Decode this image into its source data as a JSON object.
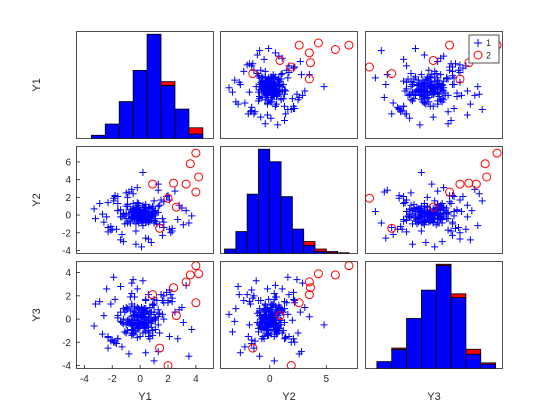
{
  "chart_data": {
    "type": "scatter",
    "variables": [
      "Y1",
      "Y2",
      "Y3"
    ],
    "groups": [
      {
        "name": "1",
        "marker": "plus",
        "color": "#0000ff"
      },
      {
        "name": "2",
        "marker": "circle",
        "color": "#ff0000"
      }
    ],
    "legend": {
      "placement": "top-right",
      "entries": [
        "1",
        "2"
      ]
    },
    "grid": false,
    "axes": {
      "Y1": {
        "range": [
          -4.6,
          5.3
        ],
        "ticks": [
          -4,
          -2,
          0,
          2,
          4
        ]
      },
      "Y2": {
        "range": [
          -4.4,
          7.8
        ],
        "ticks": [
          -4,
          -2,
          0,
          2,
          4,
          6
        ],
        "xticks": [
          -5,
          0,
          5
        ]
      },
      "Y3": {
        "range": [
          -4.3,
          5.0
        ],
        "ticks": [
          -4,
          -2,
          0,
          2,
          4
        ]
      }
    },
    "histograms": {
      "Y1": {
        "edges": [
          -3.5,
          -2.5,
          -1.5,
          -0.5,
          0.5,
          1.5,
          2.5,
          3.5,
          4.5
        ],
        "group1": [
          3,
          12,
          30,
          55,
          84,
          43,
          24,
          4
        ],
        "group2": [
          0,
          0,
          0,
          0,
          0,
          3,
          0,
          5
        ]
      },
      "Y2": {
        "edges": [
          -4,
          -3,
          -2,
          -1,
          0,
          1,
          2,
          3,
          4,
          5,
          6,
          7
        ],
        "group1": [
          4,
          18,
          48,
          84,
          74,
          46,
          20,
          7,
          2,
          1,
          0
        ],
        "group2": [
          0,
          0,
          0,
          0,
          0,
          0,
          0,
          3,
          2,
          1,
          1
        ]
      },
      "Y3": {
        "edges": [
          -3.5,
          -2.5,
          -1.5,
          -0.5,
          0.5,
          1.5,
          2.5,
          3.5,
          4.5
        ],
        "group1": [
          6,
          16,
          41,
          64,
          84,
          58,
          12,
          4
        ],
        "group2": [
          0,
          1,
          0,
          0,
          1,
          3,
          4,
          1
        ]
      }
    },
    "group2_points": [
      {
        "Y1": 4.0,
        "Y2": 7.0,
        "Y3": 4.6
      },
      {
        "Y1": 3.6,
        "Y2": 5.8,
        "Y3": 3.8
      },
      {
        "Y1": 4.2,
        "Y2": 4.3,
        "Y3": 3.9
      },
      {
        "Y1": 3.3,
        "Y2": 3.5,
        "Y3": 3.2
      },
      {
        "Y1": 2.4,
        "Y2": 3.6,
        "Y3": 2.7
      },
      {
        "Y1": 4.0,
        "Y2": 2.6,
        "Y3": 1.4
      },
      {
        "Y1": 0.9,
        "Y2": 3.5,
        "Y3": 2.1
      },
      {
        "Y1": 1.4,
        "Y2": -1.5,
        "Y3": -2.5
      },
      {
        "Y1": 2.0,
        "Y2": 1.9,
        "Y3": -4.0
      },
      {
        "Y1": 2.6,
        "Y2": 0.9,
        "Y3": 0.3
      }
    ],
    "group1_points": [
      {
        "Y1": -0.7,
        "Y2": -0.9,
        "Y3": -0.4
      },
      {
        "Y1": -1.6,
        "Y2": 0.5,
        "Y3": 0.3
      },
      {
        "Y1": 1.4,
        "Y2": -1.1,
        "Y3": 0.5
      },
      {
        "Y1": 1.4,
        "Y2": 1.1,
        "Y3": -1.2
      },
      {
        "Y1": -0.2,
        "Y2": -0.5,
        "Y3": -0.8
      },
      {
        "Y1": 0.6,
        "Y2": -0.8,
        "Y3": -0.3
      },
      {
        "Y1": -0.3,
        "Y2": 0.3,
        "Y3": -0.1
      },
      {
        "Y1": -1.3,
        "Y2": -0.2,
        "Y3": -0.3
      },
      {
        "Y1": 1.0,
        "Y2": -0.1,
        "Y3": 1.7
      },
      {
        "Y1": -0.2,
        "Y2": 1.1,
        "Y3": 2.6
      },
      {
        "Y1": -0.5,
        "Y2": 0.7,
        "Y3": -1.0
      },
      {
        "Y1": 0.7,
        "Y2": -0.6,
        "Y3": 0.1
      },
      {
        "Y1": 0.8,
        "Y2": -0.1,
        "Y3": 0.6
      },
      {
        "Y1": -0.9,
        "Y2": 1.0,
        "Y3": -0.3
      },
      {
        "Y1": 0.7,
        "Y2": 0.9,
        "Y3": 1.0
      },
      {
        "Y1": -0.6,
        "Y2": -0.2,
        "Y3": -0.4
      },
      {
        "Y1": 0.0,
        "Y2": 0.1,
        "Y3": 0.8
      },
      {
        "Y1": -1.0,
        "Y2": 0.2,
        "Y3": 1.0
      },
      {
        "Y1": -0.1,
        "Y2": -0.9,
        "Y3": 0.3
      },
      {
        "Y1": 1.3,
        "Y2": 1.0,
        "Y3": 0.8
      },
      {
        "Y1": 0.9,
        "Y2": -0.1,
        "Y3": -1.4
      },
      {
        "Y1": -0.5,
        "Y2": 0.6,
        "Y3": -1.3
      },
      {
        "Y1": 0.4,
        "Y2": -0.4,
        "Y3": 0.2
      },
      {
        "Y1": -0.9,
        "Y2": 1.2,
        "Y3": -1.0
      },
      {
        "Y1": 0.9,
        "Y2": 1.0,
        "Y3": -0.1
      },
      {
        "Y1": 0.6,
        "Y2": 0.1,
        "Y3": -1.0
      },
      {
        "Y1": -1.6,
        "Y2": 0.5,
        "Y3": 0.1
      },
      {
        "Y1": 0.3,
        "Y2": 0.9,
        "Y3": -0.8
      },
      {
        "Y1": -1.2,
        "Y2": 0.1,
        "Y3": 0.0
      },
      {
        "Y1": 0.7,
        "Y2": -0.1,
        "Y3": -1.2
      },
      {
        "Y1": -1.1,
        "Y2": -1.0,
        "Y3": -1.1
      },
      {
        "Y1": 0.2,
        "Y2": 0.2,
        "Y3": 0.3
      },
      {
        "Y1": 0.4,
        "Y2": 0.4,
        "Y3": 1.7
      },
      {
        "Y1": -0.3,
        "Y2": 0.5,
        "Y3": 0.3
      },
      {
        "Y1": 0.7,
        "Y2": -0.7,
        "Y3": -1.7
      },
      {
        "Y1": 0.4,
        "Y2": -0.8,
        "Y3": 1.6
      },
      {
        "Y1": -0.5,
        "Y2": -0.2,
        "Y3": -1.3
      },
      {
        "Y1": 0.3,
        "Y2": 0.9,
        "Y3": 0.9
      },
      {
        "Y1": 1.1,
        "Y2": -0.7,
        "Y3": -0.9
      },
      {
        "Y1": -0.1,
        "Y2": 0.5,
        "Y3": -0.5
      },
      {
        "Y1": 0.2,
        "Y2": 1.1,
        "Y3": 0.6
      },
      {
        "Y1": 1.7,
        "Y2": -0.8,
        "Y3": 0.0
      },
      {
        "Y1": -0.4,
        "Y2": 0.2,
        "Y3": -0.1
      },
      {
        "Y1": -0.3,
        "Y2": -1.8,
        "Y3": -0.5
      },
      {
        "Y1": -0.6,
        "Y2": -0.3,
        "Y3": -1.0
      },
      {
        "Y1": 0.1,
        "Y2": -0.5,
        "Y3": 0.8
      },
      {
        "Y1": 1.1,
        "Y2": 0.1,
        "Y3": -0.1
      },
      {
        "Y1": -1.0,
        "Y2": 1.0,
        "Y3": -0.5
      },
      {
        "Y1": -0.1,
        "Y2": -0.7,
        "Y3": -0.8
      },
      {
        "Y1": 1.1,
        "Y2": 0.5,
        "Y3": 0.1
      },
      {
        "Y1": -0.6,
        "Y2": 0.3,
        "Y3": 1.3
      },
      {
        "Y1": 0.6,
        "Y2": -0.6,
        "Y3": -1.5
      },
      {
        "Y1": 0.8,
        "Y2": -0.2,
        "Y3": -0.4
      },
      {
        "Y1": -0.3,
        "Y2": 0.9,
        "Y3": -0.1
      },
      {
        "Y1": -0.5,
        "Y2": 0.7,
        "Y3": 0.7
      },
      {
        "Y1": 1.0,
        "Y2": 0.2,
        "Y3": 1.2
      },
      {
        "Y1": 0.2,
        "Y2": -0.3,
        "Y3": 0.8
      },
      {
        "Y1": 0.5,
        "Y2": -0.3,
        "Y3": 0.7
      },
      {
        "Y1": 0.9,
        "Y2": 0.1,
        "Y3": 1.3
      },
      {
        "Y1": 0.0,
        "Y2": 0.6,
        "Y3": -0.7
      },
      {
        "Y1": -0.6,
        "Y2": 0.4,
        "Y3": -0.9
      },
      {
        "Y1": 0.5,
        "Y2": -0.5,
        "Y3": -0.1
      },
      {
        "Y1": 0.4,
        "Y2": 0.9,
        "Y3": 0.9
      },
      {
        "Y1": -0.1,
        "Y2": -0.2,
        "Y3": 0.9
      },
      {
        "Y1": 0.3,
        "Y2": 0.3,
        "Y3": -0.6
      },
      {
        "Y1": 1.1,
        "Y2": -0.4,
        "Y3": 0.1
      },
      {
        "Y1": -1.1,
        "Y2": -0.1,
        "Y3": 0.6
      },
      {
        "Y1": 0.4,
        "Y2": 1.2,
        "Y3": 0.6
      },
      {
        "Y1": 0.4,
        "Y2": 0.8,
        "Y3": 0.5
      },
      {
        "Y1": 0.2,
        "Y2": -0.4,
        "Y3": 0.6
      },
      {
        "Y1": 1.0,
        "Y2": -0.6,
        "Y3": 0.0
      },
      {
        "Y1": -0.2,
        "Y2": 0.7,
        "Y3": 0.3
      },
      {
        "Y1": 1.2,
        "Y2": -1.0,
        "Y3": 1.6
      },
      {
        "Y1": 0.4,
        "Y2": 0.5,
        "Y3": -1.1
      },
      {
        "Y1": -0.3,
        "Y2": -1.0,
        "Y3": -0.8
      },
      {
        "Y1": 0.2,
        "Y2": 0.0,
        "Y3": 0.6
      },
      {
        "Y1": -0.6,
        "Y2": 0.6,
        "Y3": -0.1
      },
      {
        "Y1": -0.6,
        "Y2": -0.3,
        "Y3": -0.6
      },
      {
        "Y1": 0.8,
        "Y2": 0.7,
        "Y3": -0.7
      },
      {
        "Y1": 1.3,
        "Y2": 0.3,
        "Y3": -0.5
      },
      {
        "Y1": -0.6,
        "Y2": -0.2,
        "Y3": -1.4
      },
      {
        "Y1": -1.0,
        "Y2": -0.4,
        "Y3": 0.8
      },
      {
        "Y1": -0.2,
        "Y2": 0.4,
        "Y3": -0.5
      },
      {
        "Y1": 0.4,
        "Y2": -0.2,
        "Y3": -0.4
      },
      {
        "Y1": 0.1,
        "Y2": -0.7,
        "Y3": 0.1
      },
      {
        "Y1": -0.8,
        "Y2": 0.1,
        "Y3": 0.0
      },
      {
        "Y1": 0.6,
        "Y2": 0.8,
        "Y3": -1.0
      },
      {
        "Y1": -0.7,
        "Y2": 0.6,
        "Y3": 1.9
      },
      {
        "Y1": 0.9,
        "Y2": 0.8,
        "Y3": 1.2
      },
      {
        "Y1": -0.9,
        "Y2": -0.9,
        "Y3": 0.9
      },
      {
        "Y1": 0.8,
        "Y2": -0.1,
        "Y3": 0.6
      },
      {
        "Y1": 0.1,
        "Y2": -0.2,
        "Y3": 1.0
      },
      {
        "Y1": -0.2,
        "Y2": -0.2,
        "Y3": -0.5
      },
      {
        "Y1": -1.2,
        "Y2": 0.2,
        "Y3": -0.4
      },
      {
        "Y1": 0.1,
        "Y2": -0.5,
        "Y3": 0.2
      },
      {
        "Y1": 0.2,
        "Y2": -0.9,
        "Y3": -0.5
      },
      {
        "Y1": 0.5,
        "Y2": -0.2,
        "Y3": -0.6
      },
      {
        "Y1": -1.4,
        "Y2": 0.6,
        "Y3": 0.6
      },
      {
        "Y1": 1.6,
        "Y2": -0.4,
        "Y3": 0.4
      },
      {
        "Y1": 1.0,
        "Y2": -0.4,
        "Y3": 1.2
      },
      {
        "Y1": -0.4,
        "Y2": 0.5,
        "Y3": 1.9
      },
      {
        "Y1": 0.3,
        "Y2": 0.0,
        "Y3": -0.5
      },
      {
        "Y1": -2.3,
        "Y2": -1.4,
        "Y3": -2.5
      },
      {
        "Y1": -1.8,
        "Y2": 2.1,
        "Y3": 1.7
      },
      {
        "Y1": 2.1,
        "Y2": 1.7,
        "Y3": -1.5
      },
      {
        "Y1": -2.1,
        "Y2": -1.7,
        "Y3": 1.3
      },
      {
        "Y1": 2.2,
        "Y2": -2.0,
        "Y3": 2.1
      },
      {
        "Y1": -1.6,
        "Y2": 2.1,
        "Y3": -1.7
      },
      {
        "Y1": 1.7,
        "Y2": 1.5,
        "Y3": 1.4
      },
      {
        "Y1": -2.1,
        "Y2": -1.3,
        "Y3": -1.9
      },
      {
        "Y1": 2.1,
        "Y2": -1.6,
        "Y3": 2.5
      },
      {
        "Y1": -1.8,
        "Y2": 2.2,
        "Y3": -2.0
      },
      {
        "Y1": 2.0,
        "Y2": 2.2,
        "Y3": 1.4
      },
      {
        "Y1": -1.7,
        "Y2": -1.6,
        "Y3": -2.1
      },
      {
        "Y1": 1.6,
        "Y2": -2.3,
        "Y3": 1.6
      },
      {
        "Y1": -2.3,
        "Y2": 1.4,
        "Y3": -1.6
      },
      {
        "Y1": 1.9,
        "Y2": 2.1,
        "Y3": 2.3
      },
      {
        "Y1": -1.3,
        "Y2": -2.2,
        "Y3": -2.4
      },
      {
        "Y1": 2.3,
        "Y2": -1.5,
        "Y3": 1.8
      },
      {
        "Y1": -1.9,
        "Y2": 1.9,
        "Y3": -2.0
      },
      {
        "Y1": 1.5,
        "Y2": 1.7,
        "Y3": 2.1
      },
      {
        "Y1": -2.0,
        "Y2": -1.6,
        "Y3": -1.8
      },
      {
        "Y1": 2.3,
        "Y2": -1.8,
        "Y3": 1.5
      },
      {
        "Y1": -1.6,
        "Y2": 1.3,
        "Y3": -1.7
      },
      {
        "Y1": 2.0,
        "Y2": 2.2,
        "Y3": 1.6
      },
      {
        "Y1": -2.3,
        "Y2": -1.9,
        "Y3": -1.5
      },
      {
        "Y1": 1.7,
        "Y2": -1.4,
        "Y3": 2.0
      },
      {
        "Y1": -3.2,
        "Y2": -0.4,
        "Y3": 1.3
      },
      {
        "Y1": -1.4,
        "Y2": -2.8,
        "Y3": 2.8
      },
      {
        "Y1": 3.5,
        "Y2": -0.9,
        "Y3": -3.2
      },
      {
        "Y1": -1.9,
        "Y2": 1.6,
        "Y3": 3.6
      },
      {
        "Y1": 3.7,
        "Y2": -0.1,
        "Y3": -0.9
      },
      {
        "Y1": -2.7,
        "Y2": 0.1,
        "Y3": -1.3
      },
      {
        "Y1": 0.1,
        "Y2": -3.6,
        "Y3": 0.4
      },
      {
        "Y1": 1.3,
        "Y2": 2.8,
        "Y3": -2.8
      },
      {
        "Y1": -0.2,
        "Y2": 3.1,
        "Y3": 1.0
      },
      {
        "Y1": -0.8,
        "Y2": 2.6,
        "Y3": -3.0
      },
      {
        "Y1": 0.6,
        "Y2": -2.7,
        "Y3": 2.1
      },
      {
        "Y1": -3.3,
        "Y2": 0.7,
        "Y3": -0.6
      },
      {
        "Y1": 3.3,
        "Y2": 0.5,
        "Y3": 2.9
      },
      {
        "Y1": 0.2,
        "Y2": 4.8,
        "Y3": -0.5
      },
      {
        "Y1": -2.6,
        "Y2": -0.8,
        "Y3": 0.3
      },
      {
        "Y1": 2.8,
        "Y2": 1.1,
        "Y3": 0.8
      },
      {
        "Y1": -0.3,
        "Y2": -3.3,
        "Y3": -1.1
      },
      {
        "Y1": 1.0,
        "Y2": 0.4,
        "Y3": -3.6
      },
      {
        "Y1": -1.2,
        "Y2": -3.0,
        "Y3": 0.9
      },
      {
        "Y1": 2.5,
        "Y2": 2.7,
        "Y3": 0.6
      },
      {
        "Y1": -0.6,
        "Y2": 2.9,
        "Y3": 3.1
      },
      {
        "Y1": 0.8,
        "Y2": -3.1,
        "Y3": -0.2
      },
      {
        "Y1": -2.9,
        "Y2": 1.3,
        "Y3": 1.5
      },
      {
        "Y1": 2.7,
        "Y2": -0.5,
        "Y3": -1.7
      },
      {
        "Y1": 1.3,
        "Y2": 3.5,
        "Y3": 0.2
      },
      {
        "Y1": -0.5,
        "Y2": 2.4,
        "Y3": 3.4
      },
      {
        "Y1": 0.4,
        "Y2": -2.6,
        "Y3": -2.9
      },
      {
        "Y1": -2.4,
        "Y2": -0.2,
        "Y3": 2.6
      },
      {
        "Y1": 3.0,
        "Y2": 0.8,
        "Y3": 1.0
      },
      {
        "Y1": -1.0,
        "Y2": 2.5,
        "Y3": -1.2
      },
      {
        "Y1": 0.2,
        "Y2": -1.2,
        "Y3": 3.3
      },
      {
        "Y1": 3.1,
        "Y2": -1.1,
        "Y3": -0.3
      },
      {
        "Y1": -0.9,
        "Y2": 2.0,
        "Y3": -0.1
      },
      {
        "Y1": 1.0,
        "Y2": 1.6,
        "Y3": 0.4
      },
      {
        "Y1": -0.6,
        "Y2": 0.4,
        "Y3": 2.2
      },
      {
        "Y1": -0.2,
        "Y2": 1.4,
        "Y3": -1.6
      },
      {
        "Y1": 0.2,
        "Y2": 0.0,
        "Y3": -0.3
      },
      {
        "Y1": 0.5,
        "Y2": 0.4,
        "Y3": -0.1
      },
      {
        "Y1": -1.4,
        "Y2": -0.2,
        "Y3": -0.2
      },
      {
        "Y1": -0.3,
        "Y2": 0.0,
        "Y3": -0.1
      },
      {
        "Y1": -0.5,
        "Y2": -0.4,
        "Y3": 0.3
      },
      {
        "Y1": 0.0,
        "Y2": 0.4,
        "Y3": -1.5
      },
      {
        "Y1": -0.1,
        "Y2": 1.3,
        "Y3": 0.9
      },
      {
        "Y1": 0.2,
        "Y2": 0.0,
        "Y3": 0.6
      },
      {
        "Y1": -0.6,
        "Y2": 0.3,
        "Y3": 1.1
      },
      {
        "Y1": 0.3,
        "Y2": -0.2,
        "Y3": 0.0
      },
      {
        "Y1": -0.5,
        "Y2": 1.3,
        "Y3": -0.3
      },
      {
        "Y1": -0.5,
        "Y2": 0.7,
        "Y3": -1.2
      },
      {
        "Y1": 1.0,
        "Y2": -0.9,
        "Y3": 0.6
      },
      {
        "Y1": -0.2,
        "Y2": -0.4,
        "Y3": 0.2
      },
      {
        "Y1": -0.3,
        "Y2": 0.4,
        "Y3": -0.4
      },
      {
        "Y1": 0.4,
        "Y2": 0.8,
        "Y3": -0.5
      },
      {
        "Y1": -0.4,
        "Y2": 0.2,
        "Y3": 0.6
      },
      {
        "Y1": 0.2,
        "Y2": -0.3,
        "Y3": -1.2
      },
      {
        "Y1": -0.4,
        "Y2": 0.5,
        "Y3": 1.1
      },
      {
        "Y1": 0.2,
        "Y2": 0.3,
        "Y3": 0.1
      },
      {
        "Y1": 0.3,
        "Y2": 0.1,
        "Y3": -0.7
      },
      {
        "Y1": -0.3,
        "Y2": 0.2,
        "Y3": 0.4
      },
      {
        "Y1": 0.3,
        "Y2": -0.5,
        "Y3": 0.9
      },
      {
        "Y1": -0.1,
        "Y2": 0.6,
        "Y3": -0.8
      },
      {
        "Y1": 0.9,
        "Y2": 0.8,
        "Y3": -1.0
      },
      {
        "Y1": -0.7,
        "Y2": -0.9,
        "Y3": 0.7
      },
      {
        "Y1": 0.0,
        "Y2": -0.1,
        "Y3": 0.2
      },
      {
        "Y1": 0.5,
        "Y2": -0.7,
        "Y3": -0.3
      },
      {
        "Y1": -0.5,
        "Y2": -0.3,
        "Y3": 0.2
      },
      {
        "Y1": 0.6,
        "Y2": 0.3,
        "Y3": 0.2
      },
      {
        "Y1": -0.3,
        "Y2": -0.4,
        "Y3": -0.7
      },
      {
        "Y1": 0.0,
        "Y2": 0.3,
        "Y3": 0.4
      },
      {
        "Y1": -0.1,
        "Y2": -0.3,
        "Y3": -0.6
      },
      {
        "Y1": -0.5,
        "Y2": 0.1,
        "Y3": 0.3
      },
      {
        "Y1": 0.2,
        "Y2": 0.5,
        "Y3": 0.5
      },
      {
        "Y1": -0.8,
        "Y2": -0.7,
        "Y3": -0.2
      },
      {
        "Y1": 0.4,
        "Y2": -0.8,
        "Y3": -0.7
      },
      {
        "Y1": 0.2,
        "Y2": 0.6,
        "Y3": 0.8
      },
      {
        "Y1": -0.6,
        "Y2": -0.1,
        "Y3": -0.6
      },
      {
        "Y1": 0.1,
        "Y2": -0.5,
        "Y3": 0.3
      },
      {
        "Y1": -0.1,
        "Y2": 0.8,
        "Y3": -0.3
      },
      {
        "Y1": 0.5,
        "Y2": 0.0,
        "Y3": 0.7
      },
      {
        "Y1": -0.2,
        "Y2": 0.1,
        "Y3": -0.4
      },
      {
        "Y1": 0.1,
        "Y2": 0.2,
        "Y3": -0.2
      },
      {
        "Y1": -0.4,
        "Y2": -0.5,
        "Y3": 0.4
      },
      {
        "Y1": 0.4,
        "Y2": 0.4,
        "Y3": -0.6
      },
      {
        "Y1": -0.3,
        "Y2": 0.9,
        "Y3": 0.6
      },
      {
        "Y1": 0.0,
        "Y2": -0.6,
        "Y3": -0.4
      },
      {
        "Y1": 0.7,
        "Y2": 0.1,
        "Y3": 0.4
      },
      {
        "Y1": -0.5,
        "Y2": 0.3,
        "Y3": -0.5
      },
      {
        "Y1": 0.1,
        "Y2": -0.1,
        "Y3": 0.3
      },
      {
        "Y1": -0.2,
        "Y2": 0.4,
        "Y3": -0.1
      },
      {
        "Y1": 0.3,
        "Y2": -0.3,
        "Y3": 0.2
      }
    ]
  }
}
